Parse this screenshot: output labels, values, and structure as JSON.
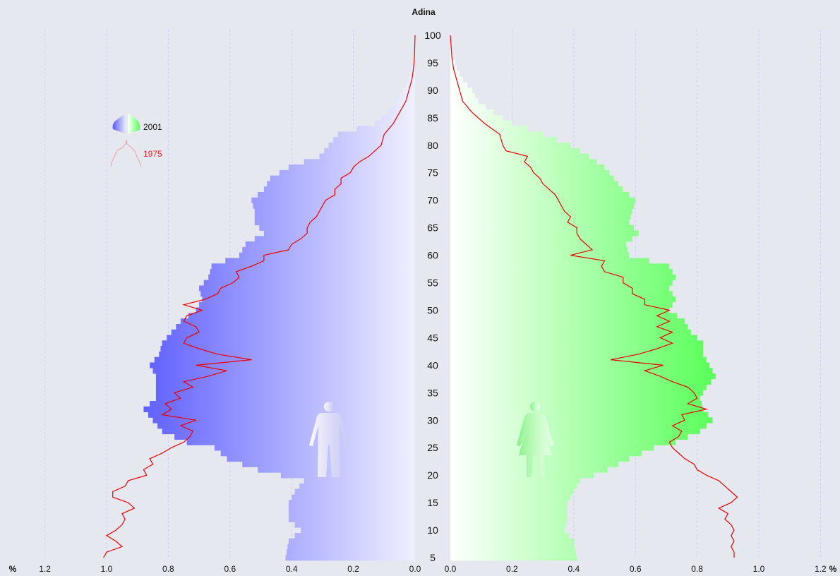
{
  "chart_data": {
    "type": "bar",
    "subtype": "population-pyramid",
    "title": "Adina",
    "unit_label": "%",
    "x_ticks_left": [
      "1.2",
      "1.0",
      "0.8",
      "0.6",
      "0.4",
      "0.2",
      "0.0"
    ],
    "x_ticks_right": [
      "0.0",
      "0.2",
      "0.4",
      "0.6",
      "0.8",
      "1.0",
      "1.2"
    ],
    "xlim": [
      0,
      1.3
    ],
    "age_ticks": [
      5,
      10,
      15,
      20,
      25,
      30,
      35,
      40,
      45,
      50,
      55,
      60,
      65,
      70,
      75,
      80,
      85,
      90,
      95,
      100
    ],
    "age_range": [
      5,
      100
    ],
    "grid": true,
    "legend": [
      {
        "name": "2001",
        "style": "bars"
      },
      {
        "name": "1975",
        "style": "line"
      }
    ],
    "colors": {
      "male_bar_dark": "#5a5aff",
      "male_bar_light": "#f0f0ff",
      "female_bar_dark": "#5aff5a",
      "female_bar_light": "#ffffff",
      "line_1975": "#ee0000",
      "grid": "#ccccee",
      "background": "#e5e8ef"
    },
    "series": [
      {
        "name": "2001",
        "side": "male",
        "points": [
          [
            5,
            0.42
          ],
          [
            8,
            0.41
          ],
          [
            10,
            0.37
          ],
          [
            12,
            0.41
          ],
          [
            15,
            0.41
          ],
          [
            17,
            0.39
          ],
          [
            19,
            0.36
          ],
          [
            21,
            0.51
          ],
          [
            23,
            0.61
          ],
          [
            25,
            0.65
          ],
          [
            26,
            0.74
          ],
          [
            27,
            0.78
          ],
          [
            28,
            0.82
          ],
          [
            30,
            0.85
          ],
          [
            32,
            0.88
          ],
          [
            34,
            0.84
          ],
          [
            36,
            0.84
          ],
          [
            38,
            0.84
          ],
          [
            40,
            0.86
          ],
          [
            42,
            0.83
          ],
          [
            44,
            0.82
          ],
          [
            46,
            0.79
          ],
          [
            48,
            0.76
          ],
          [
            50,
            0.71
          ],
          [
            52,
            0.69
          ],
          [
            54,
            0.7
          ],
          [
            56,
            0.67
          ],
          [
            58,
            0.66
          ],
          [
            60,
            0.57
          ],
          [
            62,
            0.55
          ],
          [
            64,
            0.49
          ],
          [
            66,
            0.52
          ],
          [
            68,
            0.52
          ],
          [
            70,
            0.53
          ],
          [
            72,
            0.49
          ],
          [
            74,
            0.47
          ],
          [
            76,
            0.41
          ],
          [
            78,
            0.31
          ],
          [
            80,
            0.28
          ],
          [
            82,
            0.25
          ],
          [
            84,
            0.13
          ],
          [
            86,
            0.09
          ],
          [
            88,
            0.06
          ],
          [
            90,
            0.04
          ],
          [
            92,
            0.02
          ],
          [
            94,
            0.01
          ],
          [
            96,
            0.005
          ],
          [
            98,
            0.002
          ],
          [
            100,
            0.001
          ]
        ]
      },
      {
        "name": "2001",
        "side": "female",
        "points": [
          [
            5,
            0.41
          ],
          [
            8,
            0.4
          ],
          [
            10,
            0.37
          ],
          [
            12,
            0.38
          ],
          [
            15,
            0.38
          ],
          [
            17,
            0.4
          ],
          [
            19,
            0.42
          ],
          [
            21,
            0.51
          ],
          [
            23,
            0.58
          ],
          [
            25,
            0.66
          ],
          [
            26,
            0.73
          ],
          [
            27,
            0.77
          ],
          [
            28,
            0.81
          ],
          [
            30,
            0.85
          ],
          [
            32,
            0.82
          ],
          [
            34,
            0.81
          ],
          [
            36,
            0.83
          ],
          [
            38,
            0.86
          ],
          [
            40,
            0.84
          ],
          [
            42,
            0.82
          ],
          [
            44,
            0.82
          ],
          [
            46,
            0.78
          ],
          [
            48,
            0.76
          ],
          [
            50,
            0.71
          ],
          [
            52,
            0.73
          ],
          [
            54,
            0.71
          ],
          [
            56,
            0.73
          ],
          [
            58,
            0.71
          ],
          [
            60,
            0.58
          ],
          [
            62,
            0.57
          ],
          [
            64,
            0.61
          ],
          [
            66,
            0.58
          ],
          [
            68,
            0.59
          ],
          [
            70,
            0.6
          ],
          [
            72,
            0.56
          ],
          [
            74,
            0.53
          ],
          [
            76,
            0.5
          ],
          [
            78,
            0.45
          ],
          [
            80,
            0.39
          ],
          [
            82,
            0.3
          ],
          [
            84,
            0.2
          ],
          [
            86,
            0.14
          ],
          [
            88,
            0.09
          ],
          [
            90,
            0.07
          ],
          [
            92,
            0.04
          ],
          [
            94,
            0.02
          ],
          [
            96,
            0.01
          ],
          [
            98,
            0.004
          ],
          [
            100,
            0.001
          ]
        ]
      },
      {
        "name": "1975",
        "side": "male",
        "points": [
          [
            5,
            1.01
          ],
          [
            6,
            1.0
          ],
          [
            7,
            0.95
          ],
          [
            8,
            0.97
          ],
          [
            9,
            1.0
          ],
          [
            10,
            0.97
          ],
          [
            11,
            0.95
          ],
          [
            12,
            0.94
          ],
          [
            13,
            0.95
          ],
          [
            14,
            0.91
          ],
          [
            15,
            0.93
          ],
          [
            16,
            0.98
          ],
          [
            17,
            0.98
          ],
          [
            18,
            0.94
          ],
          [
            19,
            0.93
          ],
          [
            20,
            0.87
          ],
          [
            21,
            0.88
          ],
          [
            22,
            0.85
          ],
          [
            23,
            0.86
          ],
          [
            24,
            0.82
          ],
          [
            25,
            0.79
          ],
          [
            26,
            0.75
          ],
          [
            27,
            0.73
          ],
          [
            28,
            0.72
          ],
          [
            29,
            0.76
          ],
          [
            30,
            0.71
          ],
          [
            31,
            0.82
          ],
          [
            32,
            0.79
          ],
          [
            33,
            0.81
          ],
          [
            34,
            0.76
          ],
          [
            35,
            0.78
          ],
          [
            36,
            0.72
          ],
          [
            37,
            0.75
          ],
          [
            38,
            0.67
          ],
          [
            39,
            0.61
          ],
          [
            40,
            0.71
          ],
          [
            41,
            0.53
          ],
          [
            42,
            0.64
          ],
          [
            43,
            0.7
          ],
          [
            44,
            0.75
          ],
          [
            45,
            0.74
          ],
          [
            46,
            0.7
          ],
          [
            47,
            0.71
          ],
          [
            48,
            0.75
          ],
          [
            49,
            0.74
          ],
          [
            50,
            0.69
          ],
          [
            51,
            0.75
          ],
          [
            52,
            0.68
          ],
          [
            53,
            0.64
          ],
          [
            54,
            0.63
          ],
          [
            55,
            0.59
          ],
          [
            56,
            0.57
          ],
          [
            57,
            0.58
          ],
          [
            58,
            0.53
          ],
          [
            59,
            0.49
          ],
          [
            60,
            0.49
          ],
          [
            61,
            0.41
          ],
          [
            62,
            0.4
          ],
          [
            63,
            0.37
          ],
          [
            64,
            0.35
          ],
          [
            65,
            0.35
          ],
          [
            66,
            0.34
          ],
          [
            67,
            0.32
          ],
          [
            68,
            0.31
          ],
          [
            69,
            0.3
          ],
          [
            70,
            0.29
          ],
          [
            71,
            0.26
          ],
          [
            72,
            0.26
          ],
          [
            73,
            0.24
          ],
          [
            74,
            0.24
          ],
          [
            75,
            0.21
          ],
          [
            76,
            0.2
          ],
          [
            77,
            0.18
          ],
          [
            78,
            0.15
          ],
          [
            79,
            0.13
          ],
          [
            80,
            0.11
          ],
          [
            82,
            0.1
          ],
          [
            84,
            0.07
          ],
          [
            86,
            0.05
          ],
          [
            88,
            0.03
          ],
          [
            90,
            0.02
          ],
          [
            92,
            0.01
          ],
          [
            94,
            0.005
          ],
          [
            96,
            0.002
          ],
          [
            100,
            0.0
          ]
        ]
      },
      {
        "name": "1975",
        "side": "female",
        "points": [
          [
            5,
            0.92
          ],
          [
            6,
            0.92
          ],
          [
            7,
            0.91
          ],
          [
            8,
            0.92
          ],
          [
            9,
            0.91
          ],
          [
            10,
            0.92
          ],
          [
            11,
            0.91
          ],
          [
            12,
            0.89
          ],
          [
            13,
            0.9
          ],
          [
            14,
            0.87
          ],
          [
            15,
            0.91
          ],
          [
            16,
            0.93
          ],
          [
            17,
            0.91
          ],
          [
            18,
            0.89
          ],
          [
            19,
            0.87
          ],
          [
            20,
            0.83
          ],
          [
            21,
            0.8
          ],
          [
            22,
            0.79
          ],
          [
            23,
            0.76
          ],
          [
            24,
            0.74
          ],
          [
            25,
            0.72
          ],
          [
            26,
            0.71
          ],
          [
            27,
            0.74
          ],
          [
            28,
            0.75
          ],
          [
            29,
            0.72
          ],
          [
            30,
            0.76
          ],
          [
            31,
            0.75
          ],
          [
            32,
            0.83
          ],
          [
            33,
            0.77
          ],
          [
            34,
            0.8
          ],
          [
            35,
            0.79
          ],
          [
            36,
            0.77
          ],
          [
            37,
            0.72
          ],
          [
            38,
            0.68
          ],
          [
            39,
            0.63
          ],
          [
            40,
            0.69
          ],
          [
            41,
            0.52
          ],
          [
            42,
            0.61
          ],
          [
            43,
            0.67
          ],
          [
            44,
            0.72
          ],
          [
            45,
            0.68
          ],
          [
            46,
            0.72
          ],
          [
            47,
            0.67
          ],
          [
            48,
            0.71
          ],
          [
            49,
            0.67
          ],
          [
            50,
            0.71
          ],
          [
            51,
            0.63
          ],
          [
            52,
            0.63
          ],
          [
            53,
            0.59
          ],
          [
            54,
            0.59
          ],
          [
            55,
            0.56
          ],
          [
            56,
            0.56
          ],
          [
            57,
            0.5
          ],
          [
            58,
            0.49
          ],
          [
            59,
            0.5
          ],
          [
            60,
            0.39
          ],
          [
            61,
            0.46
          ],
          [
            62,
            0.44
          ],
          [
            63,
            0.42
          ],
          [
            64,
            0.41
          ],
          [
            65,
            0.41
          ],
          [
            66,
            0.38
          ],
          [
            67,
            0.39
          ],
          [
            68,
            0.37
          ],
          [
            69,
            0.36
          ],
          [
            70,
            0.35
          ],
          [
            71,
            0.34
          ],
          [
            72,
            0.32
          ],
          [
            73,
            0.3
          ],
          [
            74,
            0.29
          ],
          [
            75,
            0.27
          ],
          [
            76,
            0.26
          ],
          [
            77,
            0.24
          ],
          [
            78,
            0.25
          ],
          [
            79,
            0.18
          ],
          [
            80,
            0.17
          ],
          [
            82,
            0.16
          ],
          [
            84,
            0.11
          ],
          [
            86,
            0.07
          ],
          [
            88,
            0.04
          ],
          [
            90,
            0.03
          ],
          [
            92,
            0.02
          ],
          [
            94,
            0.01
          ],
          [
            96,
            0.005
          ],
          [
            100,
            0.0
          ]
        ]
      }
    ]
  }
}
